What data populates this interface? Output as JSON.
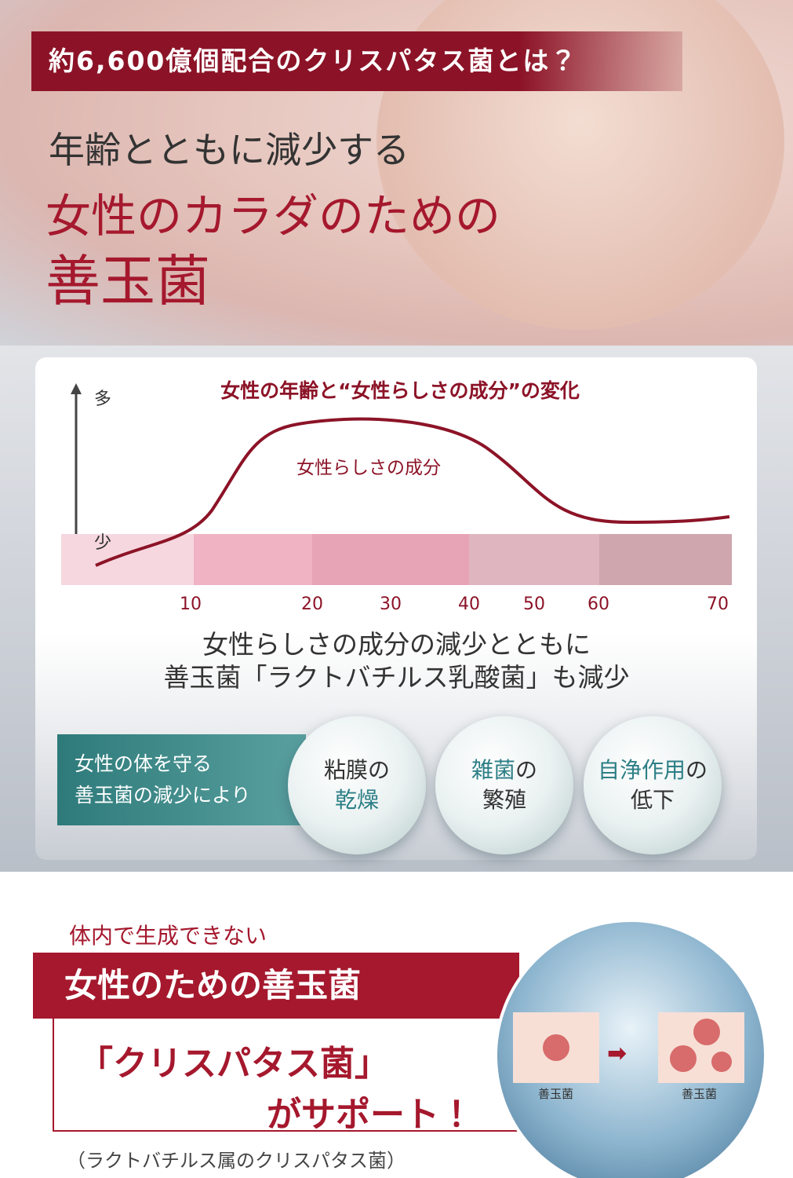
{
  "banner": "約6,600億個配合のクリスパタス菌とは？",
  "headline": {
    "line1": "年齢とともに減少する",
    "line2": "女性のカラダのための",
    "line3": "善玉菌"
  },
  "chart": {
    "title": "女性の年齢と“女性らしさの成分”の変化",
    "y_high": "多",
    "y_low": "少",
    "curve_label": "女性らしさの成分",
    "age_ticks": [
      10,
      20,
      30,
      40,
      50,
      60,
      70
    ]
  },
  "summary": [
    "女性らしさの成分の減少とともに",
    "善玉菌「ラクトバチルス乳酸菌」も減少"
  ],
  "effects": {
    "lead": [
      "女性の体を守る",
      "善玉菌の減少により"
    ],
    "circles": [
      [
        [
          {
            "text": "粘膜の",
            "accent": false
          }
        ],
        [
          {
            "text": "乾燥",
            "accent": true
          }
        ]
      ],
      [
        [
          {
            "text": "雑菌",
            "accent": true
          },
          {
            "text": "の",
            "accent": false
          }
        ],
        [
          {
            "text": "繁殖",
            "accent": false
          }
        ]
      ],
      [
        [
          {
            "text": "自浄作用",
            "accent": true
          },
          {
            "text": "の",
            "accent": false
          }
        ],
        [
          {
            "text": "低下",
            "accent": false
          }
        ]
      ]
    ]
  },
  "support": {
    "intro": "体内で生成できない",
    "box": "女性のための善玉菌",
    "line1": "「クリスパタス菌」",
    "line2": "がサポート！",
    "note": "（ラクトバチルス属のクリスパタス菌）",
    "before_label": "善玉菌",
    "after_label": "善玉菌"
  }
}
